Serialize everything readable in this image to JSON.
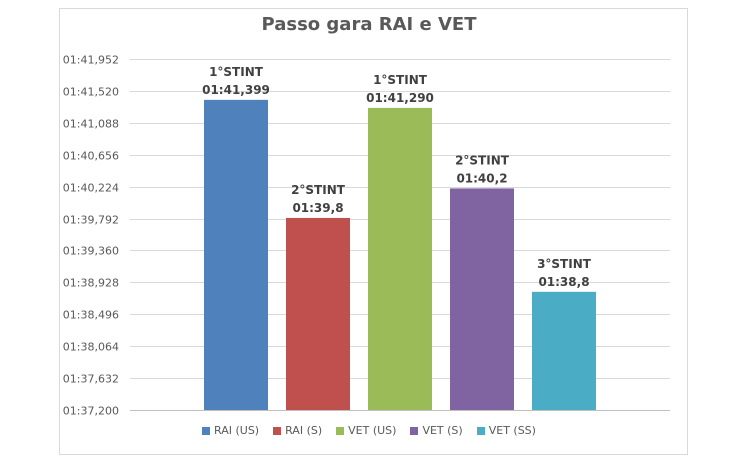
{
  "chart_data": {
    "type": "bar",
    "title": "Passo gara RAI e VET",
    "y_unit": "seconds (shown as mm:ss,ms)",
    "ylim": [
      97.2,
      101.952
    ],
    "y_ticks": [
      97.2,
      97.632,
      98.064,
      98.496,
      98.928,
      99.36,
      99.792,
      100.224,
      100.656,
      101.088,
      101.52,
      101.952
    ],
    "y_tick_labels": [
      "01:37,200",
      "01:37,632",
      "01:38,064",
      "01:38,496",
      "01:38,928",
      "01:39,360",
      "01:39,792",
      "01:40,224",
      "01:40,656",
      "01:41,088",
      "01:41,520",
      "01:41,952"
    ],
    "grid": true,
    "legend_position": "bottom",
    "series": [
      {
        "name": "RAI (US)",
        "value": 101.399,
        "color": "#4f81bd",
        "label_top": "1°STINT",
        "label_value": "01:41,399"
      },
      {
        "name": "RAI (S)",
        "value": 99.8,
        "color": "#c0504d",
        "label_top": "2°STINT",
        "label_value": "01:39,8"
      },
      {
        "name": "VET (US)",
        "value": 101.29,
        "color": "#9bbb59",
        "label_top": "1°STINT",
        "label_value": "01:41,290"
      },
      {
        "name": "VET (S)",
        "value": 100.2,
        "color": "#8064a2",
        "label_top": "2°STINT",
        "label_value": "01:40,2"
      },
      {
        "name": "VET (SS)",
        "value": 98.8,
        "color": "#4bacc6",
        "label_top": "3°STINT",
        "label_value": "01:38,8"
      }
    ]
  }
}
